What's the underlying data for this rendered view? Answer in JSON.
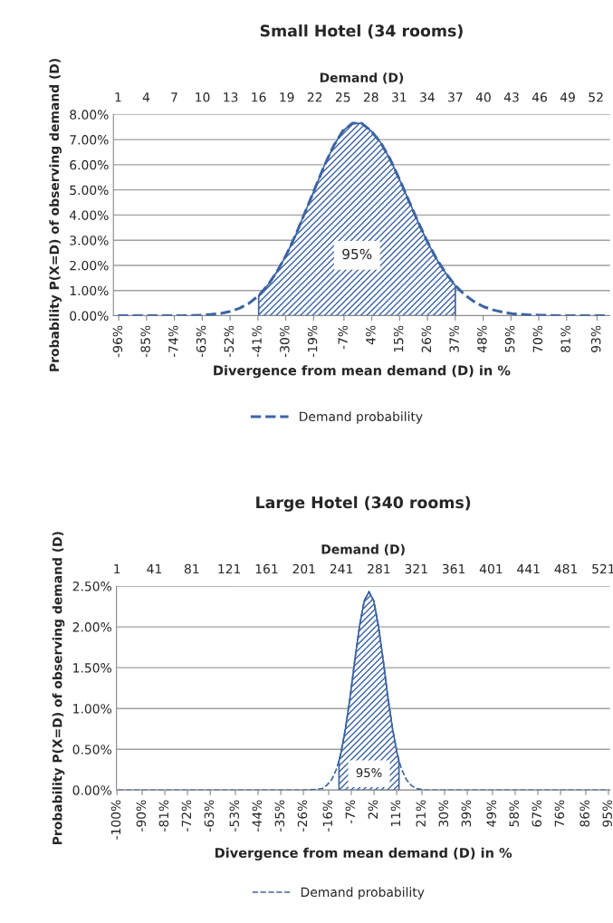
{
  "chart_data": [
    {
      "type": "line",
      "title": "Small Hotel (34 rooms)",
      "xlabel": "Divergence from mean demand (D) in %",
      "x2label": "Demand (D)",
      "ylabel": "Probability P(X=D) of observing demand (D)",
      "series": [
        {
          "name": "Demand probability",
          "color": "#3b64a3",
          "line_style": "dashed",
          "x": [
            -96.3,
            -92.6,
            -88.9,
            -85.2,
            -81.5,
            -77.8,
            -74.1,
            -70.4,
            -66.7,
            -63.0,
            -59.3,
            -55.6,
            -51.9,
            -48.1,
            -44.4,
            -40.7,
            -37.0,
            -33.3,
            -29.6,
            -25.9,
            -22.2,
            -18.5,
            -14.8,
            -11.1,
            -7.4,
            -3.7,
            0,
            3.7,
            7.4,
            11.1,
            14.8,
            18.5,
            22.2,
            25.9,
            29.6,
            33.3,
            37.0,
            40.7,
            44.4,
            48.1,
            51.9,
            55.6,
            59.3,
            63.0,
            66.7,
            70.4,
            74.1,
            77.8,
            81.5,
            85.2,
            88.9,
            92.6,
            96.3
          ],
          "values": [
            0,
            0,
            0,
            0,
            0,
            0,
            0,
            0,
            0.01,
            0.02,
            0.05,
            0.09,
            0.17,
            0.3,
            0.5,
            0.8,
            1.22,
            1.78,
            2.45,
            3.25,
            4.15,
            5.05,
            5.95,
            6.75,
            7.35,
            7.65,
            7.65,
            7.35,
            6.9,
            6.25,
            5.45,
            4.6,
            3.75,
            2.95,
            2.25,
            1.68,
            1.2,
            0.83,
            0.56,
            0.36,
            0.23,
            0.14,
            0.08,
            0.05,
            0.03,
            0.02,
            0.01,
            0,
            0,
            0,
            0,
            0,
            0
          ]
        },
        {
          "type": "area",
          "color": "#3b64a3",
          "x": [
            -40.7,
            -37.0,
            -33.3,
            -29.6,
            -25.9,
            -22.2,
            -18.5,
            -14.8,
            -11.1,
            -7.4,
            -3.7,
            0,
            3.7,
            7.4,
            11.1,
            14.8,
            18.5,
            22.2,
            25.9,
            29.6,
            33.3,
            37.0
          ],
          "values": [
            0.8,
            1.22,
            1.78,
            2.45,
            3.25,
            4.15,
            5.05,
            5.95,
            6.75,
            7.35,
            7.65,
            7.65,
            7.35,
            6.9,
            6.25,
            5.45,
            4.6,
            3.75,
            2.95,
            2.25,
            1.68,
            1.2
          ]
        }
      ],
      "annotations": [
        "95%"
      ],
      "xlim": [
        -98.1,
        98.1
      ],
      "ylim": [
        0,
        8
      ],
      "xticks": [
        {
          "value": -96,
          "label": "-96%"
        },
        {
          "value": -85,
          "label": "-85%"
        },
        {
          "value": -74,
          "label": "-74%"
        },
        {
          "value": -63,
          "label": "-63%"
        },
        {
          "value": -52,
          "label": "-52%"
        },
        {
          "value": -41,
          "label": "-41%"
        },
        {
          "value": -30,
          "label": "-30%"
        },
        {
          "value": -19,
          "label": "-19%"
        },
        {
          "value": -7,
          "label": "-7%"
        },
        {
          "value": 4,
          "label": "4%"
        },
        {
          "value": 15,
          "label": "15%"
        },
        {
          "value": 26,
          "label": "26%"
        },
        {
          "value": 37,
          "label": "37%"
        },
        {
          "value": 48,
          "label": "48%"
        },
        {
          "value": 59,
          "label": "59%"
        },
        {
          "value": 70,
          "label": "70%"
        },
        {
          "value": 81,
          "label": "81%"
        },
        {
          "value": 93,
          "label": "93%"
        }
      ],
      "x2lim": [
        0.5,
        53.5
      ],
      "x2ticks": [
        1,
        4,
        7,
        10,
        13,
        16,
        19,
        22,
        25,
        28,
        31,
        34,
        37,
        40,
        43,
        46,
        49,
        52
      ],
      "yticks": [
        {
          "value": 0,
          "label": "0.00%"
        },
        {
          "value": 1,
          "label": "1.00%"
        },
        {
          "value": 2,
          "label": "2.00%"
        },
        {
          "value": 3,
          "label": "3.00%"
        },
        {
          "value": 4,
          "label": "4.00%"
        },
        {
          "value": 5,
          "label": "5.00%"
        },
        {
          "value": 6,
          "label": "6.00%"
        },
        {
          "value": 7,
          "label": "7.00%"
        },
        {
          "value": 8,
          "label": "8.00%"
        }
      ],
      "grid": "y",
      "legend": "bottom"
    },
    {
      "type": "line",
      "title": "Large Hotel (340 rooms)",
      "xlabel": "Divergence from mean demand (D) in %",
      "x2label": "Demand (D)",
      "ylabel": "Probability P(X=D) of observing demand (D)",
      "series": [
        {
          "name": "Demand probability",
          "color": "#3b64a3",
          "line_style": "dashed",
          "x": [
            -99.6,
            -81.5,
            -63.0,
            -44.4,
            -25.9,
            -20.4,
            -18.5,
            -16.7,
            -14.8,
            -13.0,
            -11.9,
            -11.1,
            -9.3,
            -7.4,
            -5.6,
            -3.7,
            -1.9,
            0,
            1.9,
            3.7,
            5.6,
            7.4,
            9.3,
            11.1,
            11.9,
            13.0,
            14.8,
            16.7,
            18.5,
            20.4,
            22.2,
            29.6,
            48.1,
            66.7,
            85.2,
            95.6
          ],
          "values": [
            0,
            0,
            0,
            0,
            0,
            0.01,
            0.02,
            0.06,
            0.13,
            0.25,
            0.36,
            0.46,
            0.76,
            1.16,
            1.6,
            2.02,
            2.32,
            2.43,
            2.32,
            2.02,
            1.6,
            1.16,
            0.76,
            0.46,
            0.36,
            0.25,
            0.13,
            0.06,
            0.02,
            0.01,
            0,
            0,
            0,
            0,
            0,
            0
          ]
        },
        {
          "type": "area",
          "color": "#3b64a3",
          "x": [
            -11.9,
            -11.1,
            -9.3,
            -7.4,
            -5.6,
            -3.7,
            -1.9,
            0,
            1.9,
            3.7,
            5.6,
            7.4,
            9.3,
            11.1,
            11.9
          ],
          "values": [
            0.36,
            0.46,
            0.76,
            1.16,
            1.6,
            2.02,
            2.32,
            2.43,
            2.32,
            2.02,
            1.6,
            1.16,
            0.76,
            0.46,
            0.36
          ]
        }
      ],
      "annotations": [
        "95%"
      ],
      "xlim": [
        -100.2,
        95.6
      ],
      "ylim": [
        0,
        2.5
      ],
      "xticks": [
        {
          "value": -100,
          "label": "-100%"
        },
        {
          "value": -90,
          "label": "-90%"
        },
        {
          "value": -81,
          "label": "-81%"
        },
        {
          "value": -72,
          "label": "-72%"
        },
        {
          "value": -63,
          "label": "-63%"
        },
        {
          "value": -53,
          "label": "-53%"
        },
        {
          "value": -44,
          "label": "-44%"
        },
        {
          "value": -35,
          "label": "-35%"
        },
        {
          "value": -26,
          "label": "-26%"
        },
        {
          "value": -16,
          "label": "-16%"
        },
        {
          "value": -7,
          "label": "-7%"
        },
        {
          "value": 2,
          "label": "2%"
        },
        {
          "value": 11,
          "label": "11%"
        },
        {
          "value": 21,
          "label": "21%"
        },
        {
          "value": 30,
          "label": "30%"
        },
        {
          "value": 39,
          "label": "39%"
        },
        {
          "value": 49,
          "label": "49%"
        },
        {
          "value": 58,
          "label": "58%"
        },
        {
          "value": 67,
          "label": "67%"
        },
        {
          "value": 76,
          "label": "76%"
        },
        {
          "value": 86,
          "label": "86%"
        },
        {
          "value": 95,
          "label": "95%"
        }
      ],
      "x2lim": [
        0.5,
        528
      ],
      "x2ticks": [
        1,
        41,
        81,
        121,
        161,
        201,
        241,
        281,
        321,
        361,
        401,
        441,
        481,
        521
      ],
      "yticks": [
        {
          "value": 0,
          "label": "0.00%"
        },
        {
          "value": 0.5,
          "label": "0.50%"
        },
        {
          "value": 1,
          "label": "1.00%"
        },
        {
          "value": 1.5,
          "label": "1.50%"
        },
        {
          "value": 2,
          "label": "2.00%"
        },
        {
          "value": 2.5,
          "label": "2.50%"
        }
      ],
      "grid": "y",
      "legend": "bottom"
    }
  ]
}
